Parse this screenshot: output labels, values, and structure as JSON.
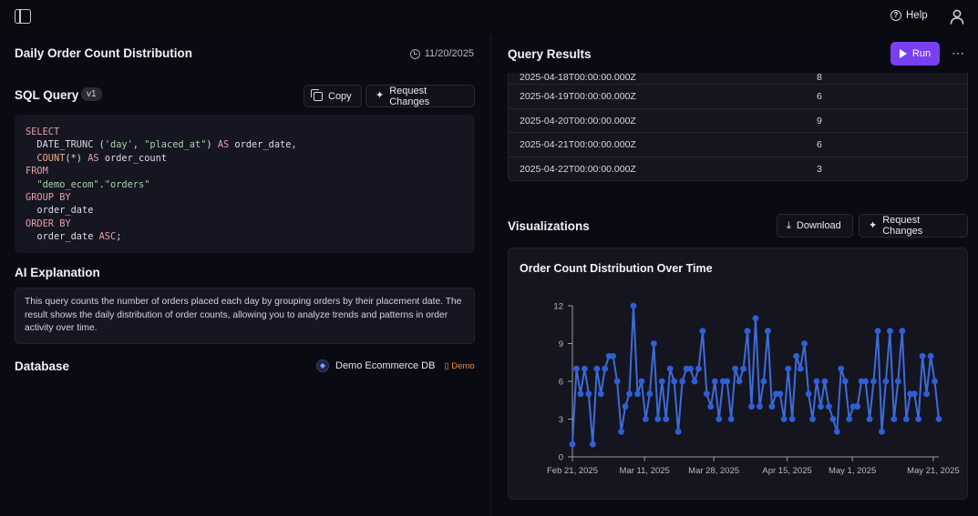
{
  "header": {
    "help_label": "Help"
  },
  "left": {
    "title": "Daily Order Count Distribution",
    "date": "11/20/2025",
    "sql": {
      "label": "SQL Query",
      "version": "v1",
      "copy_label": "Copy",
      "request_label": "Request Changes"
    },
    "ai": {
      "label": "AI Explanation",
      "text": "This query counts the number of orders placed each day by grouping orders by their placement date. The result shows the daily distribution of order counts, allowing you to analyze trends and patterns in order activity over time."
    },
    "database": {
      "label": "Database",
      "name": "Demo Ecommerce DB",
      "tag": "Demo"
    }
  },
  "right": {
    "results_title": "Query Results",
    "run_label": "Run",
    "rows": [
      {
        "date": "2025-04-18T00:00:00.000Z",
        "count": "8"
      },
      {
        "date": "2025-04-19T00:00:00.000Z",
        "count": "6"
      },
      {
        "date": "2025-04-20T00:00:00.000Z",
        "count": "9"
      },
      {
        "date": "2025-04-21T00:00:00.000Z",
        "count": "6"
      },
      {
        "date": "2025-04-22T00:00:00.000Z",
        "count": "3"
      }
    ],
    "viz_title": "Visualizations",
    "download_label": "Download",
    "viz_request_label": "Request Changes"
  },
  "colors": {
    "accent": "#7a3ff0",
    "line": "#3d6bd8",
    "point": "#2f5fd6"
  },
  "chart_data": {
    "type": "line",
    "title": "Order Count Distribution Over Time",
    "xlabel": "",
    "ylabel": "",
    "x_ticks": [
      "Feb 21, 2025",
      "Mar 11, 2025",
      "Mar 28, 2025",
      "Apr 15, 2025",
      "May 1, 2025",
      "May 21, 2025"
    ],
    "y_ticks": [
      0,
      3,
      6,
      9,
      12
    ],
    "ylim": [
      0,
      12
    ],
    "x_start": "2025-02-21",
    "x_end": "2025-05-21",
    "series": [
      {
        "values": [
          1,
          7,
          5,
          7,
          5,
          1,
          7,
          5,
          7,
          8,
          8,
          6,
          2,
          4,
          5,
          12,
          5,
          6,
          3,
          5,
          9,
          3,
          6,
          3,
          7,
          6,
          2,
          6,
          7,
          7,
          6,
          7,
          10,
          5,
          4,
          6,
          3,
          6,
          6,
          3,
          7,
          6,
          7,
          10,
          4,
          11,
          4,
          6,
          10,
          4,
          5,
          5,
          3,
          7,
          3,
          8,
          7,
          9,
          5,
          3,
          6,
          4,
          6,
          4,
          3,
          2,
          7,
          6,
          3,
          4,
          4,
          6,
          6,
          3,
          6,
          10,
          2,
          6,
          10,
          3,
          6,
          10,
          3,
          5,
          5,
          3,
          8,
          5,
          8,
          6,
          3
        ]
      }
    ]
  }
}
